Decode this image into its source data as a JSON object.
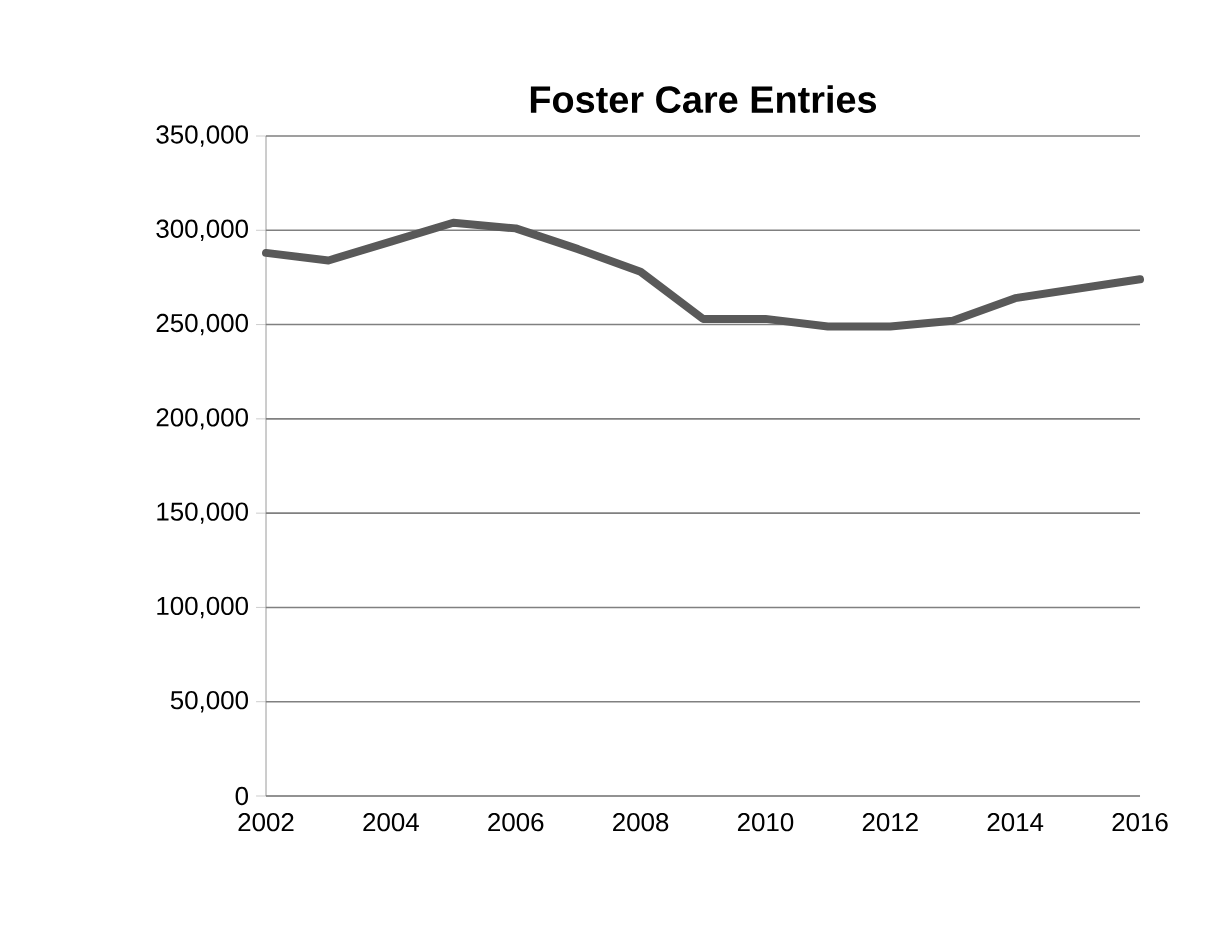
{
  "chart_data": {
    "type": "line",
    "title": "Foster Care Entries",
    "x": [
      2002,
      2003,
      2004,
      2005,
      2006,
      2007,
      2008,
      2009,
      2010,
      2011,
      2012,
      2013,
      2014,
      2015,
      2016
    ],
    "series": [
      {
        "color": "#595959",
        "values": [
          288000,
          284000,
          294000,
          304000,
          301000,
          290000,
          278000,
          253000,
          253000,
          249000,
          249000,
          252000,
          264000,
          269000,
          274000
        ]
      }
    ],
    "xlim": [
      2002,
      2016
    ],
    "xticks": [
      2002,
      2004,
      2006,
      2008,
      2010,
      2012,
      2014,
      2016
    ],
    "ylim": [
      0,
      350000
    ],
    "yticks": [
      {
        "value": 0,
        "label": "0"
      },
      {
        "value": 50000,
        "label": "50,000"
      },
      {
        "value": 100000,
        "label": "100,000"
      },
      {
        "value": 150000,
        "label": "150,000"
      },
      {
        "value": 200000,
        "label": "200,000"
      },
      {
        "value": 250000,
        "label": "250,000"
      },
      {
        "value": 300000,
        "label": "300,000"
      },
      {
        "value": 350000,
        "label": "350,000"
      }
    ],
    "grid": "y",
    "marker": "none",
    "line_style": "solid"
  }
}
